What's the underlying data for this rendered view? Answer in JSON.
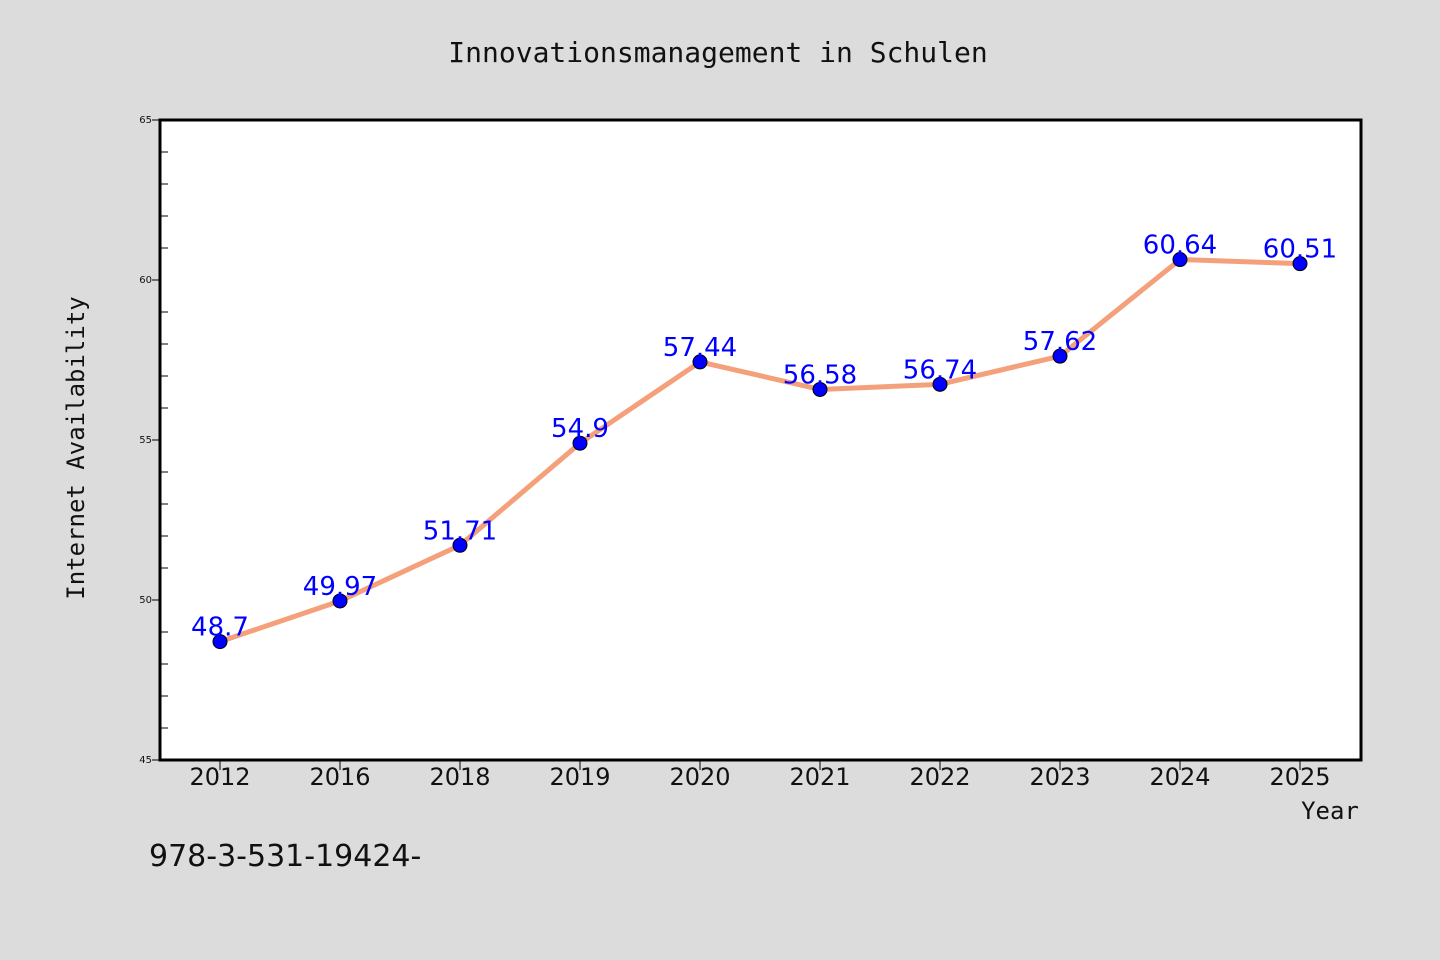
{
  "chart_data": {
    "type": "line",
    "title": "Innovationsmanagement in Schulen",
    "xlabel": "Year",
    "ylabel": "Internet Availability",
    "categories": [
      "2012",
      "2016",
      "2018",
      "2019",
      "2020",
      "2021",
      "2022",
      "2023",
      "2024",
      "2025"
    ],
    "series": [
      {
        "values": [
          48.7,
          49.97,
          51.71,
          54.9,
          57.44,
          56.58,
          56.74,
          57.62,
          60.64,
          60.51
        ],
        "data_labels": [
          "48.7",
          "49.97",
          "51.71",
          "54.9",
          "57.44",
          "56.58",
          "56.74",
          "57.62",
          "60.64",
          "60.51"
        ]
      }
    ],
    "ylim": [
      45,
      65
    ],
    "y_ticks": [
      45,
      50,
      55,
      60,
      65
    ],
    "grid": false,
    "legend": "none",
    "colors": {
      "background": "#dcdcdc",
      "plot_background": "#ffffff",
      "line": "#f4a07a",
      "marker": "#0000ff",
      "data_label": "#0000ff"
    }
  },
  "footer_text": "978-3-531-19424-"
}
